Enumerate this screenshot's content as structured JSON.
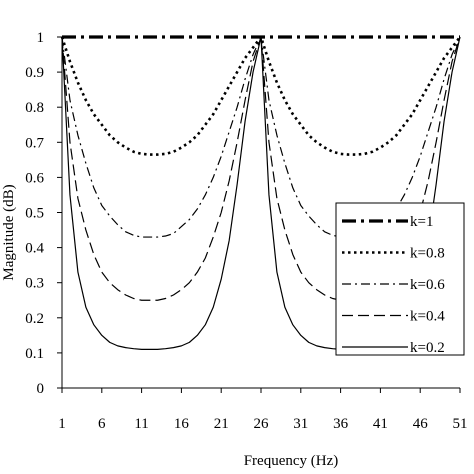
{
  "chart_data": {
    "type": "line",
    "title": "",
    "xlabel": "Frequency (Hz)",
    "ylabel": "Magnitude (dB)",
    "xlim": [
      1,
      51
    ],
    "ylim": [
      0,
      1
    ],
    "x_ticks": [
      "1",
      "6",
      "11",
      "16",
      "21",
      "26",
      "31",
      "36",
      "41",
      "46",
      "51"
    ],
    "y_ticks": [
      "0",
      "0.1",
      "0.2",
      "0.3",
      "0.4",
      "0.5",
      "0.6",
      "0.7",
      "0.8",
      "0.9",
      "1"
    ],
    "grid": false,
    "legend_position": "right",
    "x": [
      1,
      2,
      3,
      4,
      5,
      6,
      7,
      8,
      9,
      10,
      11,
      12,
      13,
      14,
      15,
      16,
      17,
      18,
      19,
      20,
      21,
      22,
      23,
      24,
      25,
      26,
      27,
      28,
      29,
      30,
      31,
      32,
      33,
      34,
      35,
      36,
      37,
      38,
      39,
      40,
      41,
      42,
      43,
      44,
      45,
      46,
      47,
      48,
      49,
      50,
      51
    ],
    "series": [
      {
        "name": "k=1",
        "style": "dashdotbold",
        "values": [
          1,
          1,
          1,
          1,
          1,
          1,
          1,
          1,
          1,
          1,
          1,
          1,
          1,
          1,
          1,
          1,
          1,
          1,
          1,
          1,
          1,
          1,
          1,
          1,
          1,
          1,
          1,
          1,
          1,
          1,
          1,
          1,
          1,
          1,
          1,
          1,
          1,
          1,
          1,
          1,
          1,
          1,
          1,
          1,
          1,
          1,
          1,
          1,
          1,
          1,
          1
        ]
      },
      {
        "name": "k=0.8",
        "style": "dotted",
        "values": [
          1,
          0.93,
          0.87,
          0.82,
          0.78,
          0.75,
          0.72,
          0.7,
          0.685,
          0.673,
          0.667,
          0.665,
          0.665,
          0.667,
          0.673,
          0.685,
          0.7,
          0.72,
          0.75,
          0.78,
          0.82,
          0.86,
          0.9,
          0.94,
          0.97,
          1,
          0.93,
          0.87,
          0.82,
          0.78,
          0.75,
          0.72,
          0.7,
          0.685,
          0.673,
          0.667,
          0.665,
          0.665,
          0.667,
          0.673,
          0.685,
          0.7,
          0.72,
          0.75,
          0.78,
          0.82,
          0.86,
          0.9,
          0.94,
          0.97,
          1
        ]
      },
      {
        "name": "k=0.6",
        "style": "dashdot",
        "values": [
          1,
          0.82,
          0.72,
          0.64,
          0.57,
          0.52,
          0.49,
          0.465,
          0.445,
          0.435,
          0.43,
          0.43,
          0.43,
          0.433,
          0.44,
          0.46,
          0.48,
          0.51,
          0.55,
          0.6,
          0.66,
          0.73,
          0.8,
          0.88,
          0.95,
          1,
          0.82,
          0.72,
          0.64,
          0.57,
          0.52,
          0.49,
          0.465,
          0.445,
          0.435,
          0.43,
          0.43,
          0.43,
          0.433,
          0.44,
          0.46,
          0.48,
          0.51,
          0.55,
          0.6,
          0.66,
          0.73,
          0.8,
          0.88,
          0.95,
          1
        ]
      },
      {
        "name": "k=0.4",
        "style": "dashed",
        "values": [
          1,
          0.7,
          0.54,
          0.45,
          0.38,
          0.33,
          0.3,
          0.28,
          0.265,
          0.255,
          0.25,
          0.25,
          0.25,
          0.255,
          0.265,
          0.28,
          0.3,
          0.33,
          0.37,
          0.43,
          0.5,
          0.59,
          0.7,
          0.82,
          0.93,
          1,
          0.7,
          0.54,
          0.45,
          0.38,
          0.33,
          0.3,
          0.28,
          0.265,
          0.255,
          0.25,
          0.25,
          0.25,
          0.255,
          0.265,
          0.28,
          0.3,
          0.33,
          0.37,
          0.43,
          0.5,
          0.59,
          0.7,
          0.82,
          0.93,
          1
        ]
      },
      {
        "name": "k=0.2",
        "style": "solid",
        "values": [
          1,
          0.55,
          0.33,
          0.23,
          0.18,
          0.15,
          0.13,
          0.12,
          0.115,
          0.112,
          0.11,
          0.11,
          0.11,
          0.112,
          0.115,
          0.12,
          0.13,
          0.15,
          0.18,
          0.23,
          0.31,
          0.42,
          0.58,
          0.76,
          0.9,
          1,
          0.55,
          0.33,
          0.23,
          0.18,
          0.15,
          0.13,
          0.12,
          0.115,
          0.112,
          0.11,
          0.11,
          0.11,
          0.112,
          0.115,
          0.12,
          0.13,
          0.15,
          0.18,
          0.23,
          0.31,
          0.42,
          0.58,
          0.76,
          0.9,
          1
        ]
      }
    ]
  }
}
